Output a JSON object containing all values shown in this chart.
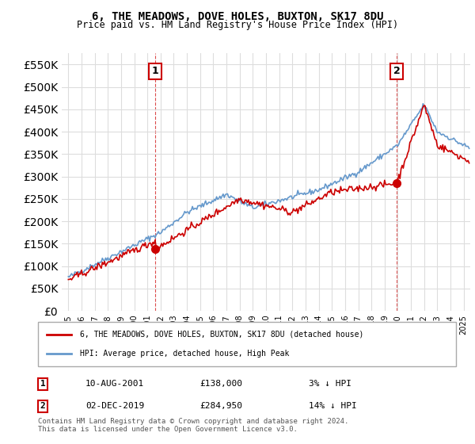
{
  "title": "6, THE MEADOWS, DOVE HOLES, BUXTON, SK17 8DU",
  "subtitle": "Price paid vs. HM Land Registry's House Price Index (HPI)",
  "ylabel_ticks": [
    "£0",
    "£50K",
    "£100K",
    "£150K",
    "£200K",
    "£250K",
    "£300K",
    "£350K",
    "£400K",
    "£450K",
    "£500K",
    "£550K"
  ],
  "ytick_values": [
    0,
    50000,
    100000,
    150000,
    200000,
    250000,
    300000,
    350000,
    400000,
    450000,
    500000,
    550000
  ],
  "ylim": [
    0,
    575000
  ],
  "xlim_start": 1994.5,
  "xlim_end": 2025.5,
  "purchase1_date": 2001.6,
  "purchase1_price": 138000,
  "purchase1_label": "1",
  "purchase2_date": 2019.92,
  "purchase2_price": 284950,
  "purchase2_label": "2",
  "annotation1": [
    "1",
    "10-AUG-2001",
    "£138,000",
    "3% ↓ HPI"
  ],
  "annotation2": [
    "2",
    "02-DEC-2019",
    "£284,950",
    "14% ↓ HPI"
  ],
  "legend_line1": "6, THE MEADOWS, DOVE HOLES, BUXTON, SK17 8DU (detached house)",
  "legend_line2": "HPI: Average price, detached house, High Peak",
  "footer": "Contains HM Land Registry data © Crown copyright and database right 2024.\nThis data is licensed under the Open Government Licence v3.0.",
  "line_color_red": "#cc0000",
  "line_color_blue": "#6699cc",
  "background_color": "#ffffff",
  "grid_color": "#dddddd",
  "annotation_box_color": "#cc0000",
  "dashed_line_color": "#cc0000"
}
